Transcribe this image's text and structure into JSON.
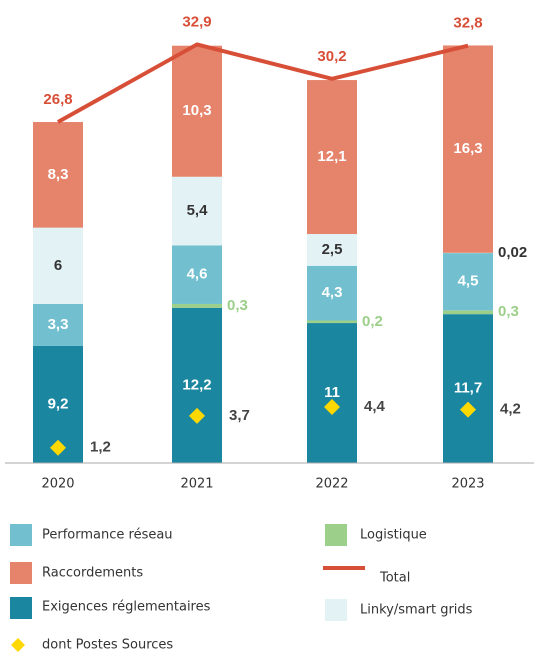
{
  "chart_data": {
    "type": "bar",
    "stacked": true,
    "categories": [
      "2020",
      "2021",
      "2022",
      "2023"
    ],
    "ylim": [
      0,
      36
    ],
    "series": [
      {
        "name": "Exigences réglementaires",
        "color": "#1a86a0",
        "label_color": "#ffffff",
        "values": [
          9.2,
          12.2,
          11,
          11.7
        ],
        "value_labels": [
          "9,2",
          "12,2",
          "11",
          "11,7"
        ]
      },
      {
        "name": "Logistique",
        "color": "#9ccf8a",
        "label_color": "#9ccf8a",
        "values": [
          null,
          0.3,
          0.2,
          0.3
        ],
        "value_labels": [
          null,
          "0,3",
          "0,2",
          "0,3"
        ]
      },
      {
        "name": "Performance réseau",
        "color": "#72bfcf",
        "label_color": "#ffffff",
        "values": [
          3.3,
          4.6,
          4.3,
          4.5
        ],
        "value_labels": [
          "3,3",
          "4,6",
          "4,3",
          "4,5"
        ]
      },
      {
        "name": "Linky/smart grids",
        "color": "#e3f2f5",
        "label_color": "#333333",
        "values": [
          6,
          5.4,
          2.5,
          0.02
        ],
        "value_labels": [
          "6",
          "5,4",
          "2,5",
          "0,02"
        ]
      },
      {
        "name": "Raccordements",
        "color": "#e5836b",
        "label_color": "#ffffff",
        "values": [
          8.3,
          10.3,
          12.1,
          16.3
        ],
        "value_labels": [
          "8,3",
          "10,3",
          "12,1",
          "16,3"
        ]
      }
    ],
    "line": {
      "name": "Total",
      "color": "#d84f38",
      "values": [
        26.8,
        32.9,
        30.2,
        32.8
      ],
      "value_labels": [
        "26,8",
        "32,9",
        "30,2",
        "32,8"
      ]
    },
    "markers": {
      "name": "dont Postes Sources",
      "color": "#ffd800",
      "values": [
        1.2,
        3.7,
        4.4,
        4.2
      ],
      "value_labels": [
        "1,2",
        "3,7",
        "4,4",
        "4,2"
      ]
    }
  }
}
